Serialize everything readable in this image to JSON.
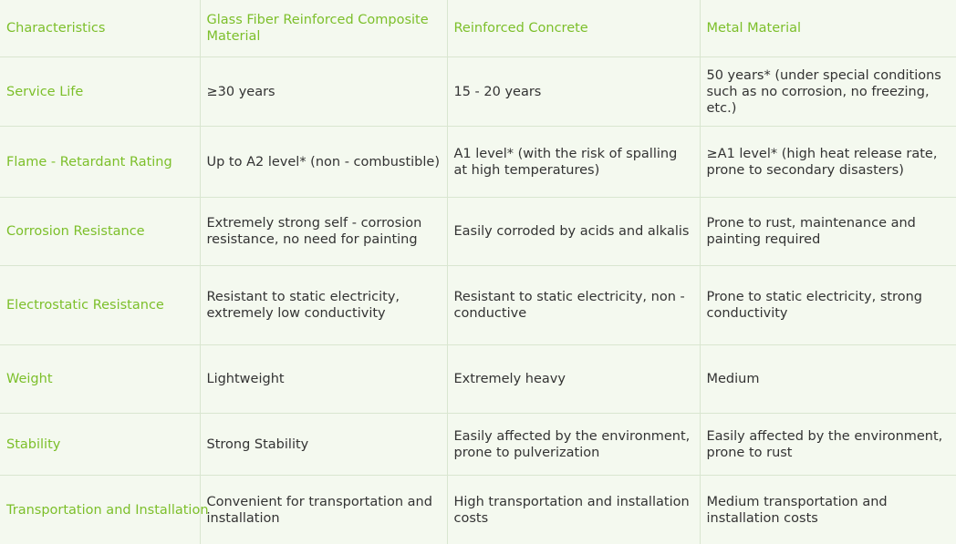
{
  "headers": [
    "Characteristics",
    "Glass Fiber Reinforced Composite Material",
    "Reinforced Concrete",
    "Metal Material"
  ],
  "rows": [
    {
      "label": "Service Life",
      "cells": [
        "≥30 years",
        "15 - 20 years",
        "50 years* (under special conditions such as no corrosion, no freezing, etc.)"
      ]
    },
    {
      "label": "Flame - Retardant Rating",
      "cells": [
        "Up to A2 level* (non - combustible)",
        "A1 level* (with the risk of spalling at high temperatures)",
        "≥A1 level* (high heat release rate, prone to secondary disasters)"
      ]
    },
    {
      "label": "Corrosion Resistance",
      "cells": [
        "Extremely strong self - corrosion resistance, no need for painting",
        "Easily corroded by acids and alkalis",
        "Prone to rust, maintenance and painting required"
      ]
    },
    {
      "label": "Electrostatic Resistance",
      "cells": [
        "Resistant to static electricity, extremely low conductivity",
        "Resistant to static electricity, non - conductive",
        "Prone to static electricity, strong conductivity"
      ]
    },
    {
      "label": "Weight",
      "cells": [
        "Lightweight",
        "Extremely heavy",
        "Medium"
      ]
    },
    {
      "label": "Stability",
      "cells": [
        "Strong Stability",
        "Easily affected by the environment, prone to pulverization",
        "Easily affected by the environment, prone to rust"
      ]
    },
    {
      "label": "Transportation and Installation",
      "cells": [
        "Convenient for transportation and installation",
        "High transportation and installation costs",
        "Medium transportation and installation costs"
      ]
    }
  ],
  "colors": {
    "accent": "#7cbf2a",
    "background": "#f4f9ef",
    "border": "#d9e6d0",
    "text": "#333333"
  }
}
